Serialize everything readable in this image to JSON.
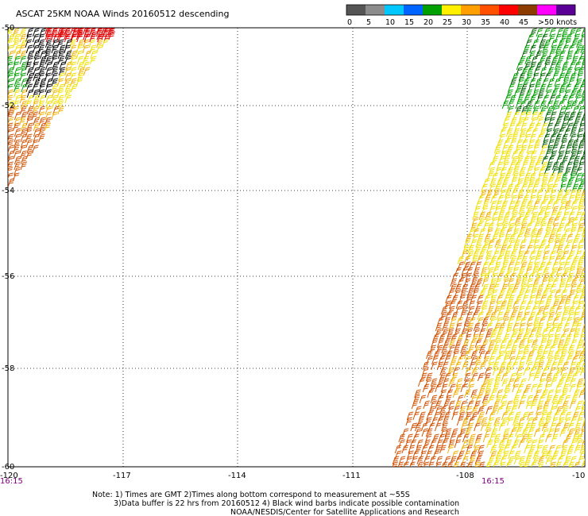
{
  "title": "ASCAT 25KM NOAA Winds 20160512 descending",
  "colorbar": {
    "labels": [
      "0",
      "5",
      "10",
      "15",
      "20",
      "25",
      "30",
      "35",
      "40",
      "45",
      ">50 knots"
    ],
    "colors": [
      "#555555",
      "#8c8c8c",
      "#00c8ff",
      "#0064ff",
      "#00a000",
      "#fff000",
      "#ffa000",
      "#ff5000",
      "#ff0000",
      "#8c3c00",
      "#ff00ff",
      "#5a0096"
    ]
  },
  "map": {
    "lon_labels": [
      "-120",
      "-117",
      "-114",
      "-111",
      "-108",
      "-10"
    ],
    "lat_labels": [
      "-50",
      "-52",
      "-54",
      "-56",
      "-58",
      "-60"
    ],
    "lon_range": [
      -120,
      -105
    ],
    "lat_range": [
      -50,
      -60
    ],
    "grid": true
  },
  "times": {
    "left": "16:15",
    "right": "16:15"
  },
  "swaths": {
    "left": {
      "lon_range_top": [
        -120,
        -116.5
      ],
      "lat_range": [
        -50,
        -54.3
      ]
    },
    "right": {
      "lat_range": [
        -50,
        -60
      ]
    }
  },
  "notes": {
    "line1": "Note: 1) Times are GMT 2)Times along bottom correspond to measurement at ~55S",
    "line2": "3)Data buffer is 22 hrs from 20160512 4) Black wind barbs indicate possible contamination",
    "line3": "NOAA/NESDIS/Center for Satellite Applications and Research"
  }
}
